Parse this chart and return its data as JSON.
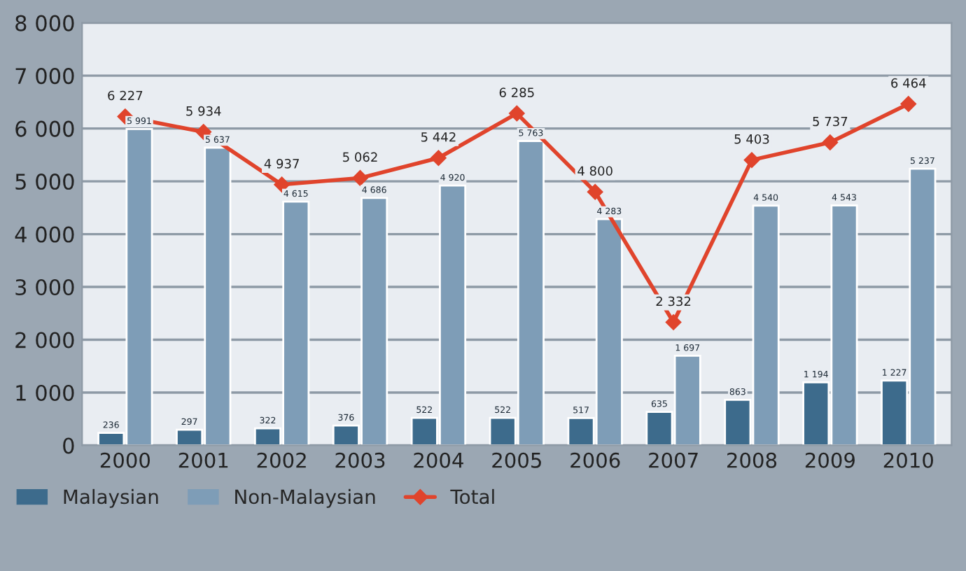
{
  "chart_data": {
    "type": "bar",
    "categories": [
      "2000",
      "2001",
      "2002",
      "2003",
      "2004",
      "2005",
      "2006",
      "2007",
      "2008",
      "2009",
      "2010"
    ],
    "series": [
      {
        "name": "Malaysian",
        "color": "#3d6b8c",
        "values": [
          236,
          297,
          322,
          376,
          522,
          522,
          517,
          635,
          863,
          1194,
          1227
        ],
        "value_labels": [
          "236",
          "297",
          "322",
          "376",
          "522",
          "522",
          "517",
          "635",
          "863",
          "1 194",
          "1 227"
        ]
      },
      {
        "name": "Non-Malaysian",
        "color": "#7e9db7",
        "values": [
          5991,
          5637,
          4615,
          4686,
          4920,
          5763,
          4283,
          1697,
          4540,
          4543,
          5237
        ],
        "value_labels": [
          "5 991",
          "5 637",
          "4 615",
          "4 686",
          "4 920",
          "5 763",
          "4 283",
          "1 697",
          "4 540",
          "4 543",
          "5 237"
        ]
      },
      {
        "name": "Total",
        "type": "line",
        "color": "#e0442c",
        "marker": "diamond",
        "values": [
          6227,
          5934,
          4937,
          5062,
          5442,
          6285,
          4800,
          2332,
          5403,
          5737,
          6464
        ],
        "value_labels": [
          "6 227",
          "5 934",
          "4 937",
          "5 062",
          "5 442",
          "6 285",
          "4 800",
          "2 332",
          "5 403",
          "5 737",
          "6 464"
        ]
      }
    ],
    "ylim": [
      0,
      8000
    ],
    "yticks": [
      {
        "value": 0,
        "label": "0"
      },
      {
        "value": 1000,
        "label": "1 000"
      },
      {
        "value": 2000,
        "label": "2 000"
      },
      {
        "value": 3000,
        "label": "3 000"
      },
      {
        "value": 4000,
        "label": "4 000"
      },
      {
        "value": 5000,
        "label": "5 000"
      },
      {
        "value": 6000,
        "label": "6 000"
      },
      {
        "value": 7000,
        "label": "7 000"
      },
      {
        "value": 8000,
        "label": "8 000"
      }
    ],
    "grid": "y",
    "legend": "bottom left"
  }
}
